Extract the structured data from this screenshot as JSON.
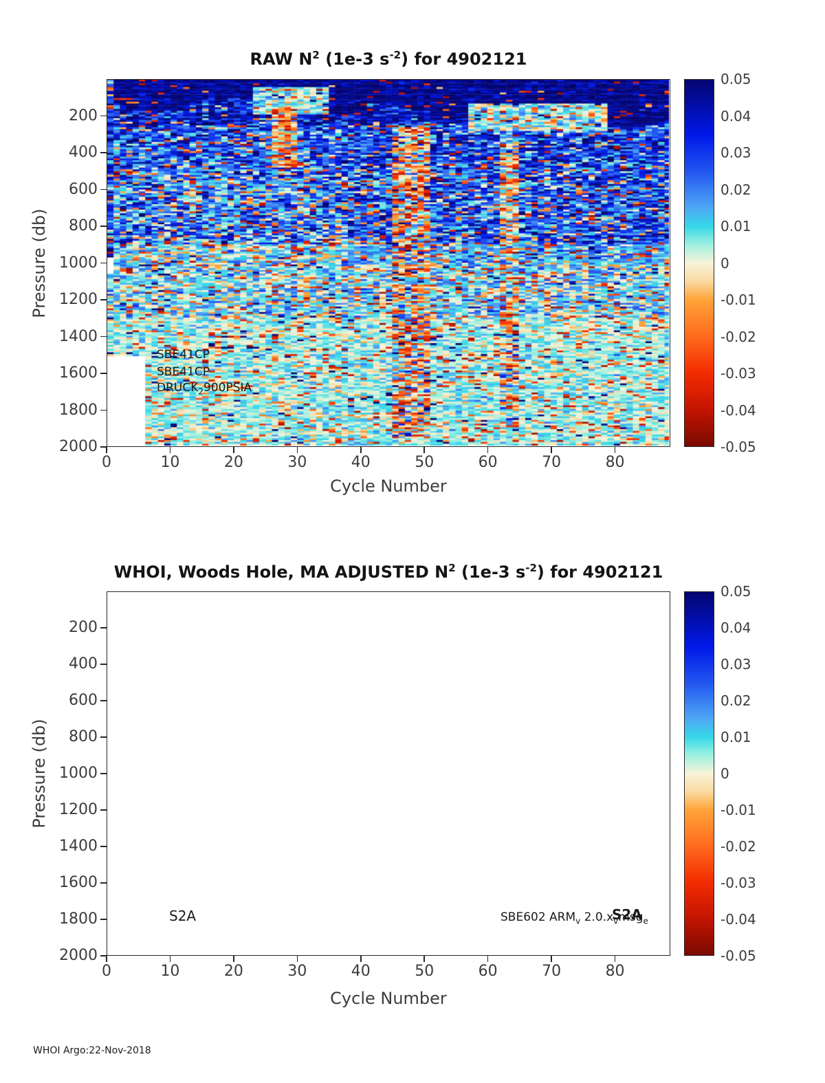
{
  "figure": {
    "footer": "WHOI Argo:22-Nov-2018"
  },
  "colorbar": {
    "tick_labels": [
      "0.05",
      "0.04",
      "0.03",
      "0.02",
      "0.01",
      "0",
      "-0.01",
      "-0.02",
      "-0.03",
      "-0.04",
      "-0.05"
    ],
    "tick_values": [
      0.05,
      0.04,
      0.03,
      0.02,
      0.01,
      0,
      -0.01,
      -0.02,
      -0.03,
      -0.04,
      -0.05
    ],
    "vmin": -0.05,
    "vmax": 0.05,
    "colormap_stops": [
      {
        "v": 0.05,
        "c": "#050570"
      },
      {
        "v": 0.035,
        "c": "#0018e8"
      },
      {
        "v": 0.025,
        "c": "#2255f0"
      },
      {
        "v": 0.015,
        "c": "#4fa8f5"
      },
      {
        "v": 0.01,
        "c": "#35d8e8"
      },
      {
        "v": 0.005,
        "c": "#9ff0e0"
      },
      {
        "v": 0.0,
        "c": "#f8f3d8"
      },
      {
        "v": -0.005,
        "c": "#fad9a0"
      },
      {
        "v": -0.01,
        "c": "#ffa438"
      },
      {
        "v": -0.02,
        "c": "#ff6a1e"
      },
      {
        "v": -0.03,
        "c": "#f22c00"
      },
      {
        "v": -0.04,
        "c": "#c31400"
      },
      {
        "v": -0.05,
        "c": "#7a0a00"
      }
    ]
  },
  "top_chart": {
    "title_parts": [
      {
        "t": "RAW N"
      },
      {
        "sup": "2"
      },
      {
        "t": " (1e-3 s"
      },
      {
        "sup": "-2"
      },
      {
        "t": ") for 4902121"
      }
    ],
    "xlabel": "Cycle Number",
    "ylabel": "Pressure (db)",
    "xtick_values": [
      0,
      10,
      20,
      30,
      40,
      50,
      60,
      70,
      80
    ],
    "xtick_labels": [
      "0",
      "10",
      "20",
      "30",
      "40",
      "50",
      "60",
      "70",
      "80"
    ],
    "ytick_values": [
      200,
      400,
      600,
      800,
      1000,
      1200,
      1400,
      1600,
      1800,
      2000
    ],
    "ytick_labels": [
      "200",
      "400",
      "600",
      "800",
      "1000",
      "1200",
      "1400",
      "1600",
      "1800",
      "2000"
    ],
    "xlim": [
      0,
      88.7
    ],
    "ylim": [
      0,
      2000
    ],
    "annotations": {
      "sensor1": [
        {
          "t": "SBE41CP"
        }
      ],
      "sensor2": [
        {
          "t": "SBE41CP"
        }
      ],
      "sensor3": [
        {
          "t": "DRUCK"
        },
        {
          "sub": "2"
        },
        {
          "t": "900PSIA"
        }
      ]
    }
  },
  "bottom_chart": {
    "title_parts": [
      {
        "t": "WHOI, Woods Hole, MA  ADJUSTED N"
      },
      {
        "sup": "2"
      },
      {
        "t": " (1e-3 s"
      },
      {
        "sup": "-2"
      },
      {
        "t": ") for 4902121"
      }
    ],
    "xlabel": "Cycle Number",
    "ylabel": "Pressure (db)",
    "xtick_values": [
      0,
      10,
      20,
      30,
      40,
      50,
      60,
      70,
      80
    ],
    "xtick_labels": [
      "0",
      "10",
      "20",
      "30",
      "40",
      "50",
      "60",
      "70",
      "80"
    ],
    "ytick_values": [
      200,
      400,
      600,
      800,
      1000,
      1200,
      1400,
      1600,
      1800,
      2000
    ],
    "ytick_labels": [
      "200",
      "400",
      "600",
      "800",
      "1000",
      "1200",
      "1400",
      "1600",
      "1800",
      "2000"
    ],
    "xlim": [
      0,
      88.7
    ],
    "ylim": [
      0,
      2000
    ],
    "annotations": {
      "platform": [
        {
          "t": "S2A"
        }
      ],
      "firmware": [
        {
          "t": "SBE602 ARM"
        },
        {
          "sub": "v"
        },
        {
          "t": " 2.0.x"
        },
        {
          "sub": "v"
        },
        {
          "t": "msg"
        },
        {
          "sub": "e"
        }
      ],
      "platform_overlay": [
        {
          "t": "S2A"
        }
      ]
    }
  },
  "chart_data": [
    {
      "type": "heatmap",
      "title": "RAW N2 (1e-3 s-2) for 4902121",
      "xlabel": "Cycle Number",
      "ylabel": "Pressure (db)",
      "xlim": [
        0,
        88.7
      ],
      "ylim_reversed": [
        0,
        2000
      ],
      "value_range": [
        -0.05,
        0.05
      ],
      "legend_position": "right-colorbar",
      "grid": false,
      "description": "Noisy pcolor section of raw buoyancy frequency N2 vs cycle number (0-88) and pressure (0-2000 db). Dark navy high-N2 band (~0.04-0.05) in upper 100-250 db deepening toward later cycles, dense blue speckle (0.02-0.05) between 250-1000 db, fading to pale cyan/cream (0-0.01) below 1200 db with scattered orange/red negative speckles (-0.01 to -0.05). Cream low-N2 patches near surface around cycles 23-34 and 57-78; noisier columns with negative values near cycles 26-29, 44-50 and 62-64; missing (white) data lower-left below ~1515 db for cycles 0-5.",
      "generation": {
        "seed": 42,
        "ncols": 89,
        "nrows": 200,
        "depth_step": 10,
        "thermocline": {
          "base": 120,
          "amp": 50,
          "period": 25,
          "slope": 1.2,
          "mean": 0.047,
          "std": 0.006,
          "neg": 0.04
        },
        "bands": [
          {
            "z0": 0,
            "z1": 30,
            "mean": 0.035,
            "std": 0.02,
            "neg": 0.15
          },
          {
            "z0": 30,
            "z1": 250,
            "mean": 0.038,
            "std": 0.015,
            "neg": 0.05
          },
          {
            "z0": 250,
            "z1": 450,
            "mean": 0.024,
            "std": 0.015,
            "neg": 0.07
          },
          {
            "z0": 450,
            "z1": 900,
            "mean": 0.018,
            "std": 0.016,
            "neg": 0.1
          },
          {
            "z0": 900,
            "z1": 1300,
            "mean": 0.009,
            "std": 0.01,
            "neg": 0.12
          },
          {
            "z0": 1300,
            "z1": 2000,
            "mean": 0.005,
            "std": 0.006,
            "neg": 0.1
          }
        ],
        "right_boost": {
          "c0": 38,
          "z0": 300,
          "z1": 1000,
          "dmean": 0.006
        },
        "features": [
          {
            "c0": 23,
            "c1": 34,
            "z0": 40,
            "z1": 190,
            "mean": 0.006,
            "std": 0.007,
            "neg": 0.08
          },
          {
            "c0": 57,
            "c1": 78,
            "z0": 130,
            "z1": 280,
            "mean": 0.006,
            "std": 0.009,
            "neg": 0.1
          },
          {
            "c0": 44.5,
            "c1": 50,
            "z0": 250,
            "z1": 1950,
            "mean": 0.004,
            "std": 0.018,
            "neg": 0.3
          },
          {
            "c0": 26,
            "c1": 29,
            "z0": 150,
            "z1": 480,
            "mean": -0.002,
            "std": 0.016,
            "neg": 0.35
          },
          {
            "c0": 62,
            "c1": 64,
            "z0": 300,
            "z1": 1900,
            "mean": 0.006,
            "std": 0.015,
            "neg": 0.25
          },
          {
            "c0": 0,
            "c1": 0.9,
            "z0": 0,
            "z1": 980,
            "mean": 0.03,
            "std": 0.015,
            "neg": 0.1
          }
        ],
        "missing": [
          {
            "c0": 0,
            "c1": 5.5,
            "z0": 1515,
            "z1": 2001
          },
          {
            "c0": 0,
            "c1": 0.9,
            "z0": 975,
            "z1": 1055
          }
        ]
      }
    },
    {
      "type": "heatmap",
      "title": "WHOI, Woods Hole, MA  ADJUSTED N2 (1e-3 s-2) for 4902121",
      "xlabel": "Cycle Number",
      "ylabel": "Pressure (db)",
      "xlim": [
        0,
        88.7
      ],
      "ylim_reversed": [
        0,
        2000
      ],
      "value_range": [
        -0.05,
        0.05
      ],
      "legend_position": "right-colorbar",
      "grid": false,
      "description": "Empty axes - no adjusted data plotted (blank white panel with annotations only)."
    }
  ]
}
